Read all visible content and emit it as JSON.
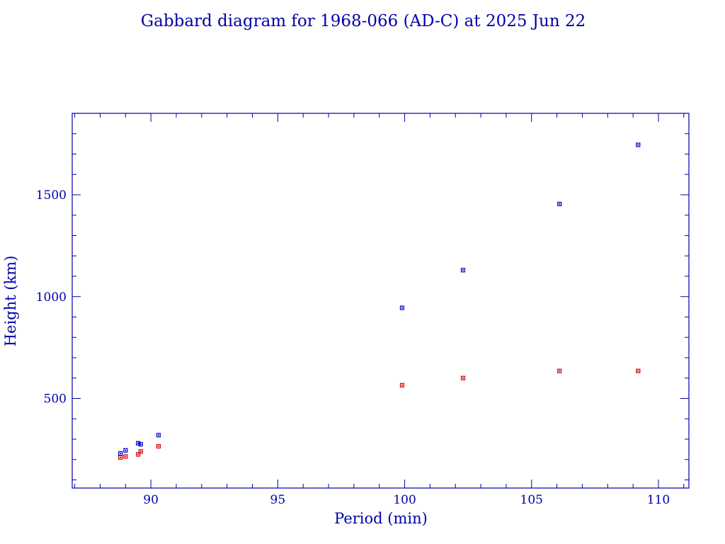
{
  "chart_data": {
    "type": "scatter",
    "title": "Gabbard diagram for 1968-066 (AD-C) at 2025 Jun 22",
    "xlabel": "Period (min)",
    "ylabel": "Height (km)",
    "xlim": [
      86.9,
      111.2
    ],
    "ylim": [
      60,
      1900
    ],
    "xticks": [
      90,
      95,
      100,
      105,
      110
    ],
    "yticks": [
      500,
      1000,
      1500
    ],
    "grid": false,
    "legend": "none",
    "series": [
      {
        "role": "apogee",
        "color": "#0000cc",
        "points": [
          {
            "x": 88.8,
            "y": 230
          },
          {
            "x": 89.0,
            "y": 245
          },
          {
            "x": 89.5,
            "y": 280
          },
          {
            "x": 89.6,
            "y": 275
          },
          {
            "x": 90.3,
            "y": 320
          },
          {
            "x": 99.9,
            "y": 945
          },
          {
            "x": 102.3,
            "y": 1130
          },
          {
            "x": 106.1,
            "y": 1455
          },
          {
            "x": 109.2,
            "y": 1745
          }
        ]
      },
      {
        "role": "perigee",
        "color": "#cc0000",
        "points": [
          {
            "x": 88.8,
            "y": 210
          },
          {
            "x": 89.0,
            "y": 215
          },
          {
            "x": 89.5,
            "y": 225
          },
          {
            "x": 89.6,
            "y": 240
          },
          {
            "x": 90.3,
            "y": 265
          },
          {
            "x": 99.9,
            "y": 565
          },
          {
            "x": 102.3,
            "y": 600
          },
          {
            "x": 106.1,
            "y": 635
          },
          {
            "x": 109.2,
            "y": 635
          }
        ]
      }
    ]
  },
  "colors": {
    "axis": "#0000aa",
    "text": "#0000aa"
  }
}
